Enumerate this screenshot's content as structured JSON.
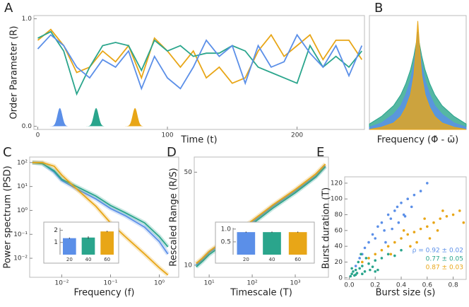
{
  "chart_data": [
    {
      "type": "line",
      "panel": "A",
      "xlabel": "Time  (t)",
      "ylabel": "Order Parameter  (R)",
      "xlim": [
        -3,
        252
      ],
      "ylim": [
        -0.03,
        1.03
      ],
      "xticks": [
        0,
        100,
        200
      ],
      "yticks": [
        {
          "value": 0,
          "label": "0.0"
        },
        {
          "value": 1,
          "label": "1.0"
        }
      ],
      "x": [
        0,
        10,
        20,
        30,
        40,
        50,
        60,
        70,
        80,
        90,
        100,
        110,
        120,
        130,
        140,
        150,
        160,
        170,
        180,
        190,
        200,
        210,
        220,
        230,
        240,
        250
      ],
      "series": [
        {
          "color": "#e8a617",
          "values": [
            0.8,
            0.9,
            0.75,
            0.5,
            0.55,
            0.7,
            0.6,
            0.75,
            0.45,
            0.82,
            0.7,
            0.55,
            0.7,
            0.45,
            0.55,
            0.4,
            0.45,
            0.7,
            0.85,
            0.65,
            0.75,
            0.85,
            0.62,
            0.8,
            0.8,
            0.62
          ]
        },
        {
          "color": "#2aa58c",
          "values": [
            0.82,
            0.88,
            0.7,
            0.3,
            0.55,
            0.75,
            0.78,
            0.75,
            0.52,
            0.8,
            0.7,
            0.75,
            0.65,
            0.68,
            0.68,
            0.75,
            0.7,
            0.55,
            0.5,
            0.45,
            0.4,
            0.75,
            0.55,
            0.65,
            0.55,
            0.7
          ]
        },
        {
          "color": "#5b8fe8",
          "values": [
            0.72,
            0.85,
            0.75,
            0.55,
            0.45,
            0.62,
            0.55,
            0.7,
            0.35,
            0.65,
            0.45,
            0.35,
            0.55,
            0.8,
            0.65,
            0.75,
            0.4,
            0.75,
            0.55,
            0.6,
            0.85,
            0.68,
            0.55,
            0.75,
            0.47,
            0.75
          ]
        }
      ],
      "distributions": [
        {
          "x": 17,
          "height": 0.17,
          "color": "#5b8fe8"
        },
        {
          "x": 45,
          "height": 0.17,
          "color": "#2aa58c"
        },
        {
          "x": 75,
          "height": 0.17,
          "color": "#e8a617"
        }
      ]
    },
    {
      "type": "area",
      "panel": "B",
      "xlabel": "Frequency  (Φ̇ - ω̄)",
      "xlim": [
        -1,
        1
      ],
      "ylim": [
        0,
        1.05
      ],
      "x": [
        -1,
        -0.75,
        -0.5,
        -0.35,
        -0.25,
        -0.15,
        -0.08,
        -0.03,
        0,
        0.03,
        0.08,
        0.15,
        0.25,
        0.35,
        0.5,
        0.75,
        1
      ],
      "series": [
        {
          "color": "#2aa58c",
          "values": [
            0.05,
            0.12,
            0.22,
            0.32,
            0.42,
            0.55,
            0.68,
            0.8,
            0.88,
            0.8,
            0.68,
            0.55,
            0.42,
            0.32,
            0.22,
            0.12,
            0.05
          ]
        },
        {
          "color": "#5b8fe8",
          "values": [
            0.02,
            0.06,
            0.14,
            0.22,
            0.32,
            0.45,
            0.6,
            0.78,
            0.9,
            0.78,
            0.6,
            0.45,
            0.32,
            0.22,
            0.14,
            0.06,
            0.02
          ]
        },
        {
          "color": "#e8a617",
          "values": [
            0,
            0.02,
            0.06,
            0.12,
            0.2,
            0.32,
            0.5,
            0.8,
            1.0,
            0.8,
            0.5,
            0.32,
            0.2,
            0.12,
            0.06,
            0.02,
            0
          ]
        }
      ]
    },
    {
      "type": "line",
      "panel": "C",
      "xlabel": "Frequency  (f)",
      "ylabel": "Power spectrum  (PSD)",
      "xlog": true,
      "ylog": true,
      "xlim": [
        0.0022,
        2.5
      ],
      "ylim": [
        0.0016,
        170
      ],
      "xticks": [
        {
          "value": 0.01,
          "label": "10⁻²"
        },
        {
          "value": 0.1,
          "label": "10⁻¹"
        },
        {
          "value": 1,
          "label": "10⁰"
        }
      ],
      "yticks": [
        {
          "value": 0.01,
          "label": "10⁻²"
        },
        {
          "value": 0.1,
          "label": "10⁻¹"
        },
        {
          "value": 1,
          "label": "10⁰"
        },
        {
          "value": 10,
          "label": "10¹"
        },
        {
          "value": 100,
          "label": "10²"
        }
      ],
      "x": [
        0.0025,
        0.004,
        0.007,
        0.01,
        0.02,
        0.05,
        0.1,
        0.2,
        0.5,
        1,
        1.5
      ],
      "series": [
        {
          "color": "#5b8fe8",
          "values": [
            100,
            95,
            40,
            18,
            8,
            3,
            1.2,
            0.6,
            0.2,
            0.05,
            0.015
          ]
        },
        {
          "color": "#2aa58c",
          "values": [
            100,
            90,
            45,
            20,
            10,
            4,
            1.6,
            0.8,
            0.3,
            0.08,
            0.03
          ]
        },
        {
          "color": "#e8a617",
          "values": [
            100,
            100,
            70,
            30,
            8,
            1.5,
            0.3,
            0.08,
            0.015,
            0.004,
            0.002
          ]
        }
      ],
      "inset": {
        "type": "bar",
        "categories": [
          "20",
          "40",
          "60"
        ],
        "values": [
          1.35,
          1.4,
          1.9
        ],
        "errors": [
          0.05,
          0.1,
          0.05
        ],
        "colors": [
          "#5b8fe8",
          "#2aa58c",
          "#e8a617"
        ],
        "ylim": [
          0,
          2.2
        ],
        "yticks": [
          1,
          2
        ]
      }
    },
    {
      "type": "line",
      "panel": "D",
      "xlabel": "Timescale  (T)",
      "ylabel": "Rescaled Range  (R/S)",
      "xlog": true,
      "ylog": true,
      "xlim": [
        4.5,
        5900
      ],
      "ylim": [
        8.1,
        65
      ],
      "xticks": [
        {
          "value": 10,
          "label": "10¹"
        },
        {
          "value": 100,
          "label": "10²"
        },
        {
          "value": 1000,
          "label": "10³"
        }
      ],
      "yticks": [
        10,
        50
      ],
      "x": [
        5,
        7,
        10,
        30,
        100,
        300,
        1000,
        3000,
        5000
      ],
      "series": [
        {
          "color": "#5b8fe8",
          "values": [
            10,
            11,
            12.4,
            16,
            21,
            27.6,
            36,
            47,
            56
          ]
        },
        {
          "color": "#2aa58c",
          "values": [
            9.7,
            10.7,
            12,
            15.5,
            20.4,
            26.8,
            35,
            46,
            55
          ]
        },
        {
          "color": "#e8a617",
          "values": [
            10.3,
            11.3,
            12.7,
            16.4,
            21.6,
            28.3,
            37,
            48.5,
            57.5
          ]
        }
      ],
      "inset": {
        "type": "bar",
        "categories": [
          "20",
          "40",
          "60"
        ],
        "values": [
          0.88,
          0.88,
          0.88
        ],
        "errors": [
          0.02,
          0.02,
          0.02
        ],
        "colors": [
          "#5b8fe8",
          "#2aa58c",
          "#e8a617"
        ],
        "ylim": [
          0,
          1.05
        ],
        "yticks": [
          0.5,
          {
            "value": 1,
            "label": "1.0"
          }
        ]
      }
    },
    {
      "type": "scatter",
      "panel": "E",
      "xlabel": "Burst size  (s)",
      "ylabel": "Burst duration  (T)",
      "xlim": [
        -0.035,
        0.9
      ],
      "ylim": [
        -2,
        128
      ],
      "xticks": [
        {
          "value": 0,
          "label": "0.0"
        },
        0.2,
        0.4,
        0.6,
        0.8
      ],
      "yticks": [
        0,
        20,
        40,
        60,
        80,
        100,
        120
      ],
      "series": [
        {
          "color": "#5b8fe8",
          "x": [
            0.05,
            0.08,
            0.1,
            0.12,
            0.15,
            0.18,
            0.2,
            0.22,
            0.25,
            0.27,
            0.3,
            0.32,
            0.35,
            0.37,
            0.4,
            0.42,
            0.45,
            0.48,
            0.5,
            0.55,
            0.28,
            0.33,
            0.38,
            0.43,
            0.6
          ],
          "values": [
            15,
            25,
            30,
            38,
            45,
            55,
            50,
            65,
            70,
            60,
            80,
            75,
            85,
            90,
            95,
            80,
            100,
            90,
            105,
            110,
            45,
            62,
            70,
            78,
            120
          ]
        },
        {
          "color": "#e8a617",
          "x": [
            0.1,
            0.15,
            0.2,
            0.25,
            0.3,
            0.35,
            0.4,
            0.45,
            0.5,
            0.55,
            0.6,
            0.65,
            0.7,
            0.75,
            0.8,
            0.85,
            0.88,
            0.42,
            0.52,
            0.62,
            0.72,
            0.32,
            0.47,
            0.58,
            0.68
          ],
          "values": [
            20,
            25,
            30,
            35,
            40,
            45,
            50,
            55,
            58,
            62,
            65,
            70,
            75,
            78,
            80,
            85,
            70,
            60,
            45,
            50,
            85,
            30,
            40,
            75,
            60
          ]
        },
        {
          "color": "#2aa58c",
          "x": [
            0.01,
            0.02,
            0.03,
            0.04,
            0.05,
            0.06,
            0.08,
            0.1,
            0.12,
            0.15,
            0.18,
            0.2,
            0.22,
            0.25,
            0.3,
            0.35,
            0.4,
            0.02,
            0.05,
            0.07,
            0.1,
            0.13,
            0.16,
            0.2,
            0.09
          ],
          "values": [
            2,
            5,
            8,
            3,
            10,
            6,
            12,
            15,
            8,
            18,
            14,
            22,
            10,
            25,
            30,
            28,
            35,
            12,
            4,
            20,
            5,
            25,
            10,
            8,
            30
          ]
        }
      ],
      "annotations": [
        {
          "text": "ρ = 0.92 ± 0.02",
          "color": "#5b8fe8"
        },
        {
          "text": "0.77 ± 0.05",
          "color": "#2aa58c"
        },
        {
          "text": "0.87 ± 0.03",
          "color": "#e8a617"
        }
      ]
    }
  ]
}
